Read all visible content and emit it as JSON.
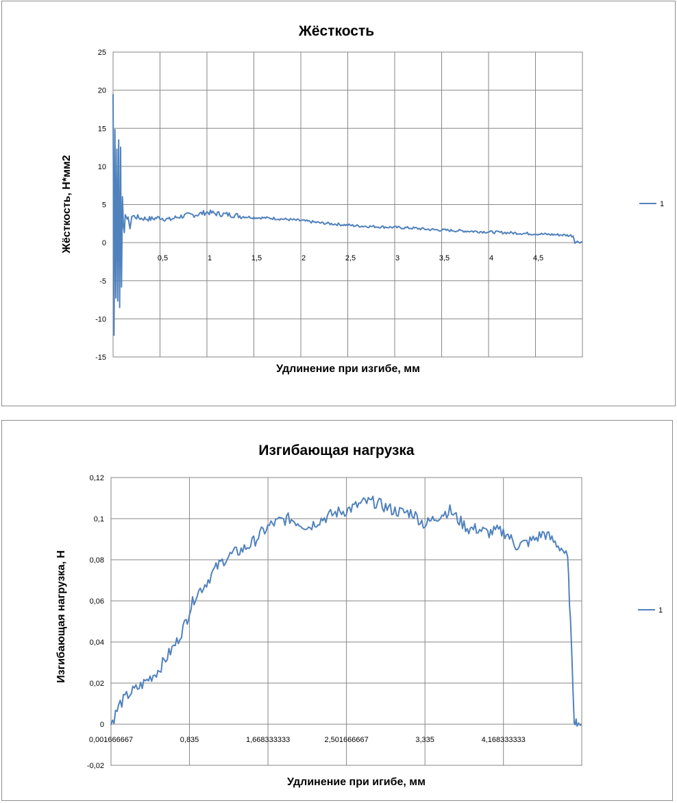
{
  "chart_data": [
    {
      "type": "line",
      "title": "Жёсткость",
      "xlabel": "Удлинение  при изгибе, мм",
      "ylabel": "Жёсткость, Н*мм2",
      "xlim": [
        0,
        5.0
      ],
      "ylim": [
        -15,
        25
      ],
      "x_ticks": [
        0,
        0.5,
        1,
        1.5,
        2,
        2.5,
        3,
        3.5,
        4,
        4.5
      ],
      "x_tick_labels": [
        "0",
        "0,5",
        "1",
        "1,5",
        "2",
        "2,5",
        "3",
        "3,5",
        "4",
        "4,5"
      ],
      "y_ticks": [
        -15,
        -10,
        -5,
        0,
        5,
        10,
        15,
        20,
        25
      ],
      "y_tick_labels": [
        "-15",
        "-10",
        "-5",
        "0",
        "5",
        "10",
        "15",
        "20",
        "25"
      ],
      "grid": true,
      "legend_position": "right",
      "series": [
        {
          "name": "1",
          "color": "#4f81bd",
          "x": [
            0.0,
            0.01,
            0.02,
            0.03,
            0.04,
            0.05,
            0.06,
            0.07,
            0.08,
            0.09,
            0.1,
            0.12,
            0.14,
            0.16,
            0.2,
            0.3,
            0.4,
            0.5,
            0.6,
            0.7,
            0.8,
            0.9,
            1.0,
            1.1,
            1.2,
            1.3,
            1.4,
            1.5,
            1.7,
            1.9,
            2.0,
            2.2,
            2.4,
            2.6,
            2.8,
            3.0,
            3.2,
            3.4,
            3.6,
            3.8,
            4.0,
            4.2,
            4.4,
            4.6,
            4.8,
            4.9,
            4.92,
            5.0
          ],
          "values": [
            19.5,
            -11,
            15,
            -6,
            12,
            -7,
            13,
            -8.5,
            12,
            -6,
            7,
            0,
            4.5,
            2,
            3.5,
            3.2,
            3.1,
            3.3,
            3.0,
            3.4,
            3.6,
            3.7,
            4.0,
            3.8,
            3.7,
            3.6,
            3.4,
            3.3,
            3.2,
            3.0,
            2.9,
            2.6,
            2.4,
            2.2,
            2.1,
            2.0,
            1.9,
            1.7,
            1.6,
            1.5,
            1.4,
            1.3,
            1.2,
            1.1,
            1.0,
            0.9,
            0.1,
            0.1
          ]
        }
      ]
    },
    {
      "type": "line",
      "title": "Изгибающая нагрузка",
      "xlabel": "Удлинение при игибе, мм",
      "ylabel": "Изгибающая нагрузка, Н",
      "xlim": [
        0.001666667,
        5.0
      ],
      "ylim": [
        -0.02,
        0.12
      ],
      "x_ticks": [
        0.001666667,
        0.835,
        1.668333333,
        2.501666667,
        3.335,
        4.168333333
      ],
      "x_tick_labels": [
        "0,001666667",
        "0,835",
        "1,668333333",
        "2,501666667",
        "3,335",
        "4,168333333"
      ],
      "y_ticks": [
        -0.02,
        0,
        0.02,
        0.04,
        0.06,
        0.08,
        0.1,
        0.12
      ],
      "y_tick_labels": [
        "-0,02",
        "0",
        "0,02",
        "0,04",
        "0,06",
        "0,08",
        "0,1",
        "0,12"
      ],
      "grid": true,
      "legend_position": "right",
      "series": [
        {
          "name": "1",
          "color": "#4f81bd",
          "x": [
            0.0017,
            0.05,
            0.1,
            0.2,
            0.3,
            0.4,
            0.5,
            0.6,
            0.7,
            0.8,
            0.835,
            0.9,
            1.0,
            1.1,
            1.2,
            1.3,
            1.4,
            1.5,
            1.6,
            1.7,
            1.8,
            1.9,
            2.0,
            2.1,
            2.2,
            2.3,
            2.4,
            2.5,
            2.6,
            2.7,
            2.8,
            2.9,
            3.0,
            3.1,
            3.2,
            3.335,
            3.4,
            3.5,
            3.6,
            3.7,
            3.8,
            3.9,
            4.0,
            4.1,
            4.2,
            4.3,
            4.4,
            4.5,
            4.6,
            4.7,
            4.8,
            4.85,
            4.88,
            4.92,
            4.95,
            5.0
          ],
          "values": [
            0.0,
            0.005,
            0.01,
            0.015,
            0.018,
            0.022,
            0.026,
            0.033,
            0.04,
            0.05,
            0.055,
            0.063,
            0.068,
            0.075,
            0.08,
            0.083,
            0.085,
            0.088,
            0.093,
            0.097,
            0.099,
            0.1,
            0.098,
            0.096,
            0.099,
            0.101,
            0.103,
            0.104,
            0.106,
            0.108,
            0.108,
            0.106,
            0.104,
            0.103,
            0.103,
            0.097,
            0.099,
            0.102,
            0.104,
            0.099,
            0.095,
            0.095,
            0.093,
            0.094,
            0.093,
            0.087,
            0.088,
            0.09,
            0.093,
            0.089,
            0.085,
            0.08,
            0.05,
            0.002,
            0.001,
            0.0
          ]
        }
      ]
    }
  ]
}
